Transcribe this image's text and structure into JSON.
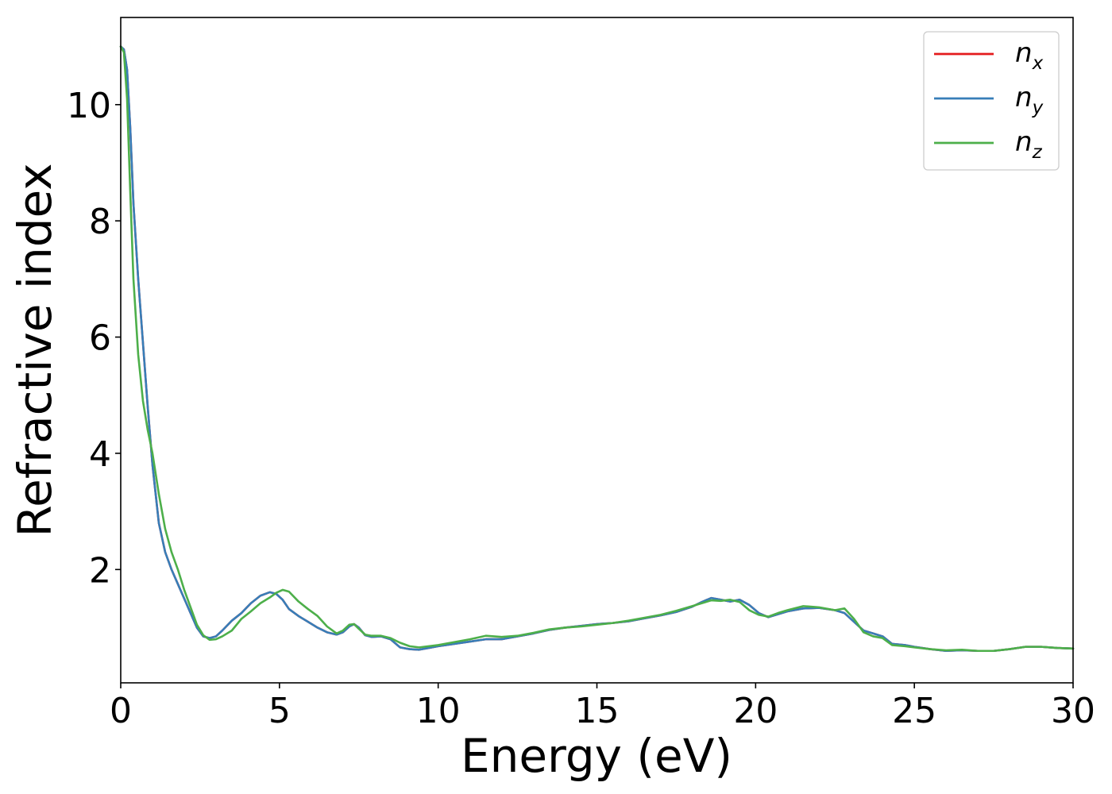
{
  "chart_data": {
    "type": "line",
    "title": "",
    "xlabel": "Energy (eV)",
    "ylabel": "Refractive index",
    "xlim": [
      0,
      30
    ],
    "ylim": [
      0.05,
      11.5
    ],
    "x_ticks": [
      0,
      5,
      10,
      15,
      20,
      25,
      30
    ],
    "y_ticks": [
      2,
      4,
      6,
      8,
      10
    ],
    "grid": false,
    "legend_position": "top-right",
    "series": [
      {
        "name": "n",
        "subscript": "x",
        "color": "#e41a1c",
        "points": [
          [
            0,
            11.0
          ],
          [
            0.1,
            10.95
          ],
          [
            0.2,
            10.6
          ],
          [
            0.3,
            9.6
          ],
          [
            0.4,
            8.3
          ],
          [
            0.55,
            7.0
          ],
          [
            0.7,
            5.9
          ],
          [
            0.85,
            4.8
          ],
          [
            1.0,
            3.8
          ],
          [
            1.2,
            2.8
          ],
          [
            1.4,
            2.3
          ],
          [
            1.6,
            2.0
          ],
          [
            1.8,
            1.75
          ],
          [
            2.0,
            1.5
          ],
          [
            2.2,
            1.25
          ],
          [
            2.4,
            1.0
          ],
          [
            2.6,
            0.85
          ],
          [
            2.8,
            0.82
          ],
          [
            3.0,
            0.85
          ],
          [
            3.2,
            0.95
          ],
          [
            3.5,
            1.12
          ],
          [
            3.8,
            1.25
          ],
          [
            4.1,
            1.42
          ],
          [
            4.4,
            1.55
          ],
          [
            4.7,
            1.61
          ],
          [
            4.9,
            1.58
          ],
          [
            5.1,
            1.48
          ],
          [
            5.3,
            1.32
          ],
          [
            5.6,
            1.2
          ],
          [
            5.9,
            1.1
          ],
          [
            6.2,
            1.0
          ],
          [
            6.5,
            0.92
          ],
          [
            6.8,
            0.88
          ],
          [
            7.0,
            0.92
          ],
          [
            7.2,
            1.02
          ],
          [
            7.35,
            1.06
          ],
          [
            7.5,
            1.0
          ],
          [
            7.7,
            0.87
          ],
          [
            7.9,
            0.84
          ],
          [
            8.2,
            0.85
          ],
          [
            8.5,
            0.8
          ],
          [
            8.8,
            0.66
          ],
          [
            9.1,
            0.63
          ],
          [
            9.4,
            0.62
          ],
          [
            9.7,
            0.65
          ],
          [
            10.0,
            0.68
          ],
          [
            10.5,
            0.72
          ],
          [
            11.0,
            0.76
          ],
          [
            11.5,
            0.8
          ],
          [
            12.0,
            0.8
          ],
          [
            12.5,
            0.85
          ],
          [
            13.0,
            0.9
          ],
          [
            13.5,
            0.96
          ],
          [
            14.0,
            1.0
          ],
          [
            14.5,
            1.03
          ],
          [
            15.0,
            1.06
          ],
          [
            15.5,
            1.08
          ],
          [
            16.0,
            1.11
          ],
          [
            16.5,
            1.16
          ],
          [
            17.0,
            1.21
          ],
          [
            17.5,
            1.27
          ],
          [
            18.0,
            1.36
          ],
          [
            18.3,
            1.44
          ],
          [
            18.6,
            1.51
          ],
          [
            18.9,
            1.48
          ],
          [
            19.2,
            1.45
          ],
          [
            19.5,
            1.48
          ],
          [
            19.8,
            1.39
          ],
          [
            20.1,
            1.25
          ],
          [
            20.4,
            1.18
          ],
          [
            20.7,
            1.23
          ],
          [
            21.0,
            1.28
          ],
          [
            21.5,
            1.33
          ],
          [
            22.0,
            1.34
          ],
          [
            22.5,
            1.3
          ],
          [
            22.8,
            1.25
          ],
          [
            23.1,
            1.1
          ],
          [
            23.4,
            0.95
          ],
          [
            23.7,
            0.9
          ],
          [
            24.0,
            0.85
          ],
          [
            24.3,
            0.72
          ],
          [
            24.7,
            0.7
          ],
          [
            25.0,
            0.67
          ],
          [
            25.5,
            0.63
          ],
          [
            26.0,
            0.6
          ],
          [
            26.5,
            0.61
          ],
          [
            27.0,
            0.6
          ],
          [
            27.5,
            0.6
          ],
          [
            28.0,
            0.63
          ],
          [
            28.5,
            0.67
          ],
          [
            29.0,
            0.67
          ],
          [
            29.5,
            0.65
          ],
          [
            30.0,
            0.64
          ]
        ]
      },
      {
        "name": "n",
        "subscript": "y",
        "color": "#377eb8",
        "points": [
          [
            0,
            11.0
          ],
          [
            0.1,
            10.95
          ],
          [
            0.2,
            10.6
          ],
          [
            0.3,
            9.6
          ],
          [
            0.4,
            8.3
          ],
          [
            0.55,
            7.0
          ],
          [
            0.7,
            5.9
          ],
          [
            0.85,
            4.8
          ],
          [
            1.0,
            3.8
          ],
          [
            1.2,
            2.8
          ],
          [
            1.4,
            2.3
          ],
          [
            1.6,
            2.0
          ],
          [
            1.8,
            1.75
          ],
          [
            2.0,
            1.5
          ],
          [
            2.2,
            1.25
          ],
          [
            2.4,
            1.0
          ],
          [
            2.6,
            0.85
          ],
          [
            2.8,
            0.82
          ],
          [
            3.0,
            0.85
          ],
          [
            3.2,
            0.95
          ],
          [
            3.5,
            1.12
          ],
          [
            3.8,
            1.25
          ],
          [
            4.1,
            1.42
          ],
          [
            4.4,
            1.55
          ],
          [
            4.7,
            1.61
          ],
          [
            4.9,
            1.58
          ],
          [
            5.1,
            1.48
          ],
          [
            5.3,
            1.32
          ],
          [
            5.6,
            1.2
          ],
          [
            5.9,
            1.1
          ],
          [
            6.2,
            1.0
          ],
          [
            6.5,
            0.92
          ],
          [
            6.8,
            0.88
          ],
          [
            7.0,
            0.92
          ],
          [
            7.2,
            1.02
          ],
          [
            7.35,
            1.06
          ],
          [
            7.5,
            1.0
          ],
          [
            7.7,
            0.87
          ],
          [
            7.9,
            0.84
          ],
          [
            8.2,
            0.85
          ],
          [
            8.5,
            0.8
          ],
          [
            8.8,
            0.66
          ],
          [
            9.1,
            0.63
          ],
          [
            9.4,
            0.62
          ],
          [
            9.7,
            0.65
          ],
          [
            10.0,
            0.68
          ],
          [
            10.5,
            0.72
          ],
          [
            11.0,
            0.76
          ],
          [
            11.5,
            0.8
          ],
          [
            12.0,
            0.8
          ],
          [
            12.5,
            0.85
          ],
          [
            13.0,
            0.9
          ],
          [
            13.5,
            0.96
          ],
          [
            14.0,
            1.0
          ],
          [
            14.5,
            1.03
          ],
          [
            15.0,
            1.06
          ],
          [
            15.5,
            1.08
          ],
          [
            16.0,
            1.11
          ],
          [
            16.5,
            1.16
          ],
          [
            17.0,
            1.21
          ],
          [
            17.5,
            1.27
          ],
          [
            18.0,
            1.36
          ],
          [
            18.3,
            1.44
          ],
          [
            18.6,
            1.51
          ],
          [
            18.9,
            1.48
          ],
          [
            19.2,
            1.45
          ],
          [
            19.5,
            1.48
          ],
          [
            19.8,
            1.39
          ],
          [
            20.1,
            1.25
          ],
          [
            20.4,
            1.18
          ],
          [
            20.7,
            1.23
          ],
          [
            21.0,
            1.28
          ],
          [
            21.5,
            1.33
          ],
          [
            22.0,
            1.34
          ],
          [
            22.5,
            1.3
          ],
          [
            22.8,
            1.25
          ],
          [
            23.1,
            1.1
          ],
          [
            23.4,
            0.95
          ],
          [
            23.7,
            0.9
          ],
          [
            24.0,
            0.85
          ],
          [
            24.3,
            0.72
          ],
          [
            24.7,
            0.7
          ],
          [
            25.0,
            0.67
          ],
          [
            25.5,
            0.63
          ],
          [
            26.0,
            0.6
          ],
          [
            26.5,
            0.61
          ],
          [
            27.0,
            0.6
          ],
          [
            27.5,
            0.6
          ],
          [
            28.0,
            0.63
          ],
          [
            28.5,
            0.67
          ],
          [
            29.0,
            0.67
          ],
          [
            29.5,
            0.65
          ],
          [
            30.0,
            0.64
          ]
        ]
      },
      {
        "name": "n",
        "subscript": "z",
        "color": "#4daf4a",
        "points": [
          [
            0,
            11.0
          ],
          [
            0.1,
            10.9
          ],
          [
            0.2,
            10.1
          ],
          [
            0.3,
            8.5
          ],
          [
            0.4,
            7.0
          ],
          [
            0.55,
            5.7
          ],
          [
            0.7,
            4.9
          ],
          [
            0.85,
            4.4
          ],
          [
            1.0,
            4.0
          ],
          [
            1.2,
            3.3
          ],
          [
            1.4,
            2.7
          ],
          [
            1.6,
            2.3
          ],
          [
            1.8,
            2.0
          ],
          [
            2.0,
            1.65
          ],
          [
            2.2,
            1.35
          ],
          [
            2.4,
            1.05
          ],
          [
            2.6,
            0.87
          ],
          [
            2.8,
            0.79
          ],
          [
            3.0,
            0.8
          ],
          [
            3.2,
            0.85
          ],
          [
            3.5,
            0.95
          ],
          [
            3.8,
            1.15
          ],
          [
            4.1,
            1.28
          ],
          [
            4.4,
            1.42
          ],
          [
            4.7,
            1.52
          ],
          [
            4.9,
            1.6
          ],
          [
            5.1,
            1.65
          ],
          [
            5.3,
            1.62
          ],
          [
            5.6,
            1.45
          ],
          [
            5.9,
            1.32
          ],
          [
            6.2,
            1.2
          ],
          [
            6.5,
            1.02
          ],
          [
            6.8,
            0.9
          ],
          [
            7.0,
            0.95
          ],
          [
            7.2,
            1.05
          ],
          [
            7.35,
            1.06
          ],
          [
            7.5,
            0.98
          ],
          [
            7.7,
            0.88
          ],
          [
            7.9,
            0.86
          ],
          [
            8.2,
            0.86
          ],
          [
            8.5,
            0.82
          ],
          [
            8.8,
            0.74
          ],
          [
            9.1,
            0.68
          ],
          [
            9.4,
            0.66
          ],
          [
            9.7,
            0.68
          ],
          [
            10.0,
            0.7
          ],
          [
            10.5,
            0.75
          ],
          [
            11.0,
            0.8
          ],
          [
            11.5,
            0.86
          ],
          [
            12.0,
            0.84
          ],
          [
            12.5,
            0.86
          ],
          [
            13.0,
            0.91
          ],
          [
            13.5,
            0.97
          ],
          [
            14.0,
            1.0
          ],
          [
            14.5,
            1.02
          ],
          [
            15.0,
            1.05
          ],
          [
            15.5,
            1.08
          ],
          [
            16.0,
            1.12
          ],
          [
            16.5,
            1.17
          ],
          [
            17.0,
            1.22
          ],
          [
            17.5,
            1.29
          ],
          [
            18.0,
            1.37
          ],
          [
            18.3,
            1.42
          ],
          [
            18.6,
            1.47
          ],
          [
            18.9,
            1.46
          ],
          [
            19.2,
            1.48
          ],
          [
            19.5,
            1.44
          ],
          [
            19.8,
            1.3
          ],
          [
            20.1,
            1.22
          ],
          [
            20.4,
            1.19
          ],
          [
            20.7,
            1.25
          ],
          [
            21.0,
            1.3
          ],
          [
            21.5,
            1.37
          ],
          [
            22.0,
            1.35
          ],
          [
            22.5,
            1.3
          ],
          [
            22.8,
            1.33
          ],
          [
            23.1,
            1.15
          ],
          [
            23.4,
            0.92
          ],
          [
            23.7,
            0.85
          ],
          [
            24.0,
            0.82
          ],
          [
            24.3,
            0.7
          ],
          [
            24.7,
            0.68
          ],
          [
            25.0,
            0.66
          ],
          [
            25.5,
            0.63
          ],
          [
            26.0,
            0.61
          ],
          [
            26.5,
            0.62
          ],
          [
            27.0,
            0.6
          ],
          [
            27.5,
            0.6
          ],
          [
            28.0,
            0.63
          ],
          [
            28.5,
            0.67
          ],
          [
            29.0,
            0.67
          ],
          [
            29.5,
            0.65
          ],
          [
            30.0,
            0.64
          ]
        ]
      }
    ]
  }
}
